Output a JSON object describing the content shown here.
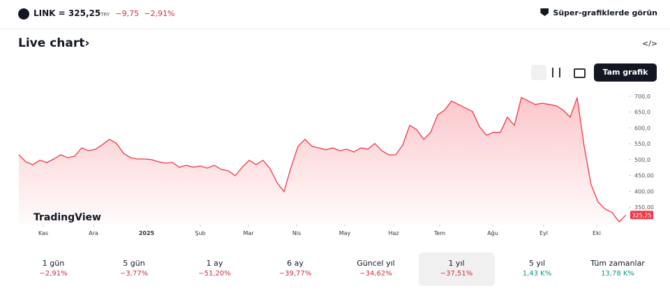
{
  "header": {
    "symbol": "LINK",
    "equals": "=",
    "price": "325,25",
    "currency": "TRY",
    "change": "−9,75",
    "change_pct": "−2,91%",
    "super_button": "Süper-grafiklerde görün"
  },
  "section": {
    "title": "Live chart",
    "chevron": "›",
    "embed": "</>",
    "full_chart": "Tam grafik",
    "watermark": "TradingView"
  },
  "chart_data": {
    "type": "line",
    "color": "#f23645",
    "values": [
      515,
      493,
      484,
      498,
      491,
      502,
      515,
      506,
      511,
      537,
      528,
      533,
      548,
      564,
      551,
      520,
      506,
      502,
      502,
      500,
      493,
      489,
      491,
      476,
      482,
      476,
      480,
      473,
      482,
      469,
      465,
      449,
      476,
      498,
      484,
      498,
      471,
      427,
      399,
      476,
      542,
      564,
      542,
      537,
      531,
      537,
      528,
      533,
      524,
      537,
      533,
      551,
      528,
      515,
      515,
      546,
      608,
      595,
      564,
      586,
      641,
      656,
      685,
      674,
      663,
      652,
      604,
      577,
      586,
      586,
      634,
      608,
      696,
      685,
      674,
      678,
      674,
      670,
      656,
      634,
      696,
      542,
      421,
      366,
      344,
      333,
      304,
      325.25
    ],
    "last_value_label": "325,25",
    "xlim": [
      0,
      87
    ],
    "xticks": [
      {
        "value": 3.5,
        "label": "Kas"
      },
      {
        "value": 10.7,
        "label": "Ara"
      },
      {
        "value": 18.3,
        "label": "2025"
      },
      {
        "value": 26,
        "label": "Şub"
      },
      {
        "value": 32.9,
        "label": "Mar"
      },
      {
        "value": 39.8,
        "label": "Nis"
      },
      {
        "value": 46.7,
        "label": "May"
      },
      {
        "value": 53.7,
        "label": "Haz"
      },
      {
        "value": 60.3,
        "label": "Tem"
      },
      {
        "value": 67.9,
        "label": "Ağu"
      },
      {
        "value": 75.2,
        "label": "Eyl"
      },
      {
        "value": 82.8,
        "label": "Eki"
      }
    ],
    "ylim": [
      295,
      722
    ],
    "yticks": [
      {
        "value": 350,
        "label": "350,00"
      },
      {
        "value": 400,
        "label": "400,00"
      },
      {
        "value": 450,
        "label": "450,00"
      },
      {
        "value": 500,
        "label": "500,0"
      },
      {
        "value": 550,
        "label": "550,0"
      },
      {
        "value": 600,
        "label": "600,0"
      },
      {
        "value": 650,
        "label": "650,0"
      },
      {
        "value": 700,
        "label": "700,0"
      }
    ]
  },
  "periods": [
    {
      "label": "1 gün",
      "change": "−2,91%"
    },
    {
      "label": "5 gün",
      "change": "−3,77%"
    },
    {
      "label": "1 ay",
      "change": "−51,20%"
    },
    {
      "label": "6 ay",
      "change": "−39,77%"
    },
    {
      "label": "Güncel yıl",
      "change": "−34,62%"
    },
    {
      "label": "1 yıl",
      "change": "−37,51%",
      "selected": true
    },
    {
      "label": "5 yıl",
      "change": "1,43 K%",
      "positive": true
    },
    {
      "label": "Tüm zamanlar",
      "change": "13,78 K%",
      "positive": true
    }
  ]
}
